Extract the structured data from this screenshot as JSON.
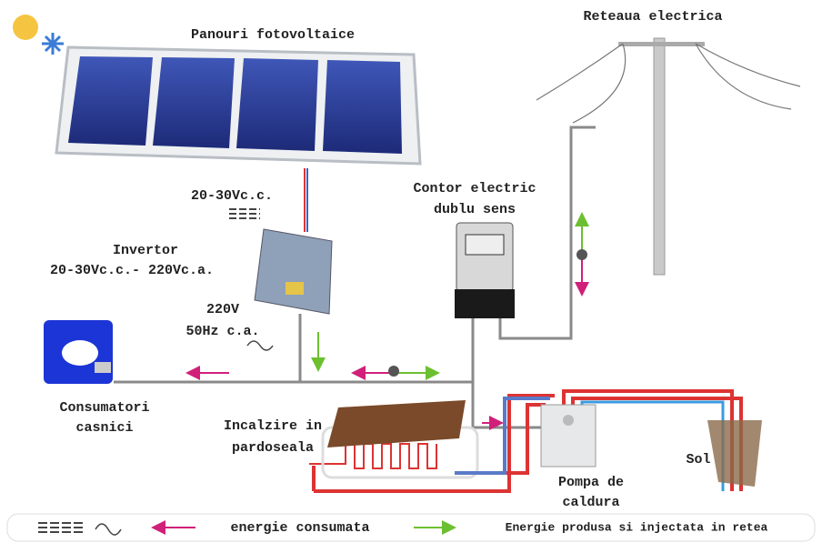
{
  "title": "Panouri fotovoltaice",
  "grid_label": "Reteaua electrica",
  "dc_voltage": "20-30Vc.c.",
  "meter": [
    "Contor electric",
    "dublu sens"
  ],
  "inverter": [
    "Invertor",
    "20-30Vc.c.- 220Vc.a."
  ],
  "ac_output": [
    "220V",
    "50Hz c.a."
  ],
  "consumers": [
    "Consumatori",
    "casnici"
  ],
  "floor_heating": [
    "Incalzire in",
    "pardoseala"
  ],
  "heat_pump": [
    "Pompa de",
    "caldura"
  ],
  "ground": "Sol",
  "legend": {
    "consumed": "energie consumata",
    "produced": "Energie produsa si injectata in retea"
  }
}
